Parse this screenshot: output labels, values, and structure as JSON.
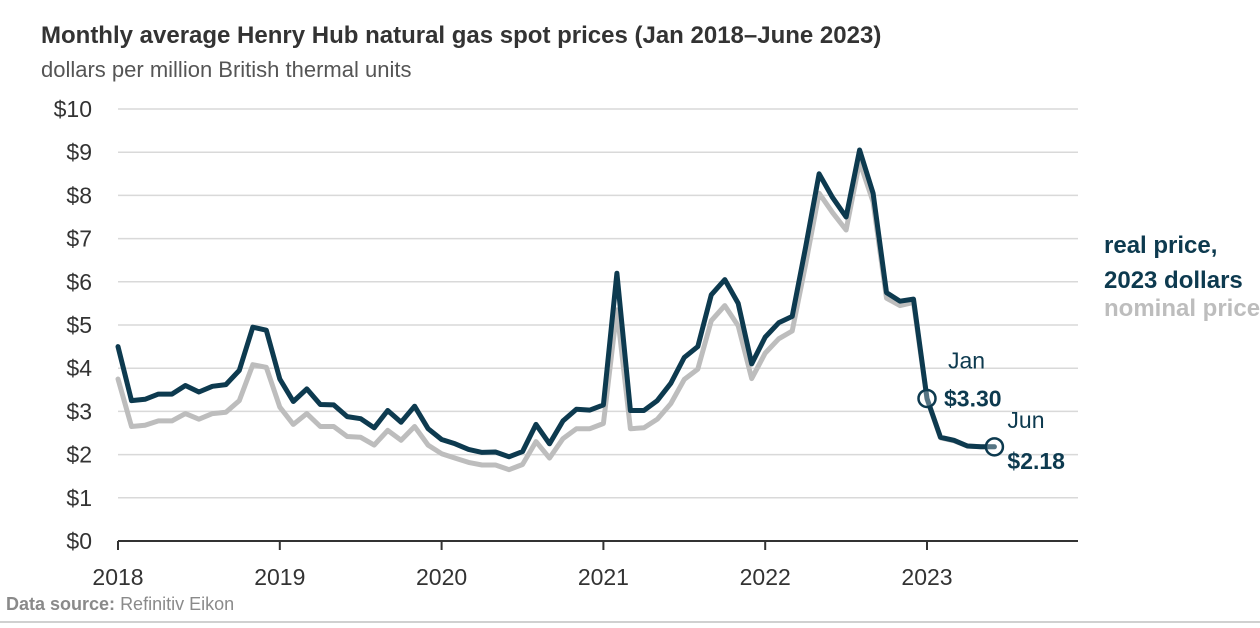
{
  "header": {
    "title": "Monthly average Henry Hub natural gas spot prices (Jan 2018–June 2023)",
    "subtitle": "dollars per million British thermal units"
  },
  "source": {
    "label": "Data source:",
    "value": "Refinitiv Eikon"
  },
  "colors": {
    "real": "#0d3a4f",
    "nominal": "#bdbdbd",
    "grid": "#d9d9d9",
    "axis": "#333333"
  },
  "chart_data": {
    "type": "line",
    "title": "Monthly average Henry Hub natural gas spot prices (Jan 2018–June 2023)",
    "ylabel": "dollars per million British thermal units",
    "xlabel": "",
    "x_start": "2018-01",
    "ylim": [
      0,
      10
    ],
    "y_ticks": [
      "$0",
      "$1",
      "$2",
      "$3",
      "$4",
      "$5",
      "$6",
      "$7",
      "$8",
      "$9",
      "$10"
    ],
    "x_ticks": [
      "2018",
      "2019",
      "2020",
      "2021",
      "2022",
      "2023"
    ],
    "grid": true,
    "legend_position": "right",
    "series": [
      {
        "name": "real price, 2023 dollars",
        "values": [
          4.5,
          3.25,
          3.28,
          3.4,
          3.4,
          3.6,
          3.45,
          3.58,
          3.62,
          3.95,
          4.95,
          4.88,
          3.75,
          3.23,
          3.52,
          3.16,
          3.15,
          2.88,
          2.83,
          2.62,
          3.02,
          2.75,
          3.12,
          2.6,
          2.35,
          2.25,
          2.12,
          2.05,
          2.06,
          1.95,
          2.07,
          2.7,
          2.25,
          2.78,
          3.05,
          3.03,
          3.15,
          6.2,
          3.02,
          3.02,
          3.25,
          3.65,
          4.25,
          4.5,
          5.7,
          6.05,
          5.5,
          4.1,
          4.72,
          5.05,
          5.2,
          6.8,
          8.5,
          7.95,
          7.5,
          9.05,
          8.05,
          5.75,
          5.55,
          5.6,
          3.3,
          2.4,
          2.33,
          2.2,
          2.18,
          2.18
        ]
      },
      {
        "name": "nominal price",
        "values": [
          3.75,
          2.65,
          2.68,
          2.78,
          2.78,
          2.95,
          2.82,
          2.95,
          2.98,
          3.25,
          4.08,
          4.02,
          3.1,
          2.7,
          2.95,
          2.65,
          2.65,
          2.42,
          2.4,
          2.22,
          2.56,
          2.33,
          2.65,
          2.22,
          2.02,
          1.92,
          1.82,
          1.76,
          1.76,
          1.65,
          1.77,
          2.3,
          1.92,
          2.37,
          2.6,
          2.6,
          2.72,
          5.35,
          2.6,
          2.62,
          2.82,
          3.18,
          3.74,
          3.98,
          5.1,
          5.45,
          4.98,
          3.76,
          4.35,
          4.68,
          4.86,
          6.4,
          8.05,
          7.6,
          7.2,
          8.78,
          7.85,
          5.62,
          5.45,
          5.52,
          3.28,
          2.39,
          2.32,
          2.2,
          2.18,
          2.18
        ]
      }
    ],
    "annotations": [
      {
        "month_label": "Jan",
        "value_label": "$3.30",
        "date": "2023-01",
        "value": 3.3
      },
      {
        "month_label": "Jun",
        "value_label": "$2.18",
        "date": "2023-06",
        "value": 2.18
      }
    ]
  },
  "legend": {
    "real_line1": "real price,",
    "real_line2": "2023 dollars",
    "nominal": "nominal price"
  }
}
